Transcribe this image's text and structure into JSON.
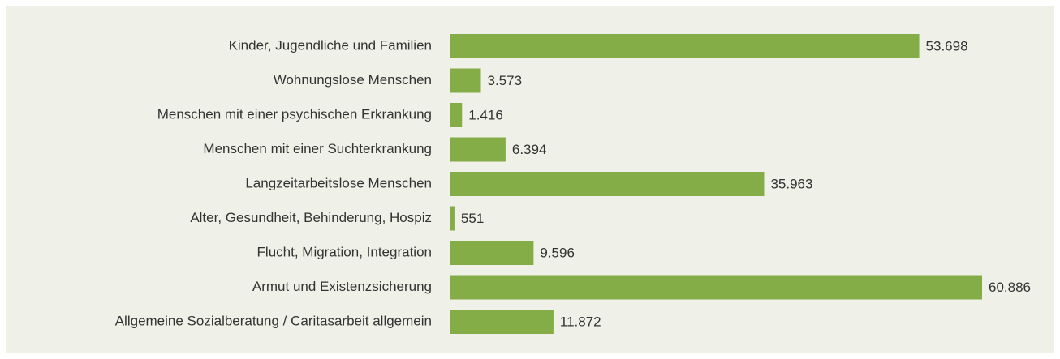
{
  "chart_data": {
    "type": "barh",
    "categories": [
      "Kinder, Jugendliche und Familien",
      "Wohnungslose Menschen",
      "Menschen mit einer psychischen Erkrankung",
      "Menschen mit einer Suchterkrankung",
      "Langzeitarbeitslose Menschen",
      "Alter, Gesundheit, Behinderung, Hospiz",
      "Flucht, Migration, Integration",
      "Armut und Existenzsicherung",
      "Allgemeine Sozialberatung / Caritasarbeit allgemein"
    ],
    "values": [
      53698,
      3573,
      1416,
      6394,
      35963,
      551,
      9596,
      60886,
      11872
    ],
    "value_labels": [
      "53.698",
      "3.573",
      "1.416",
      "6.394",
      "35.963",
      "551",
      "9.596",
      "60.886",
      "11.872"
    ],
    "color": "#84ad48"
  }
}
